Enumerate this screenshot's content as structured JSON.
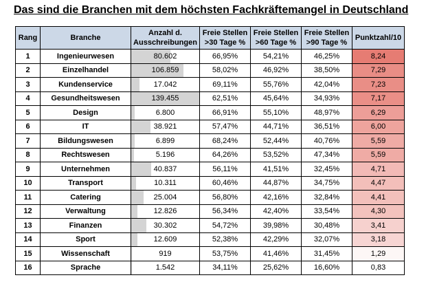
{
  "title": "Das sind die Branchen mit dem höchsten Fachkräftemangel in Deutschland",
  "headers": {
    "rank": "Rang",
    "branche": "Branche",
    "anzahl": "Anzahl d. Ausschreibungen",
    "f30": "Freie Stellen >30 Tage %",
    "f60": "Freie Stellen >60 Tage %",
    "f90": "Freie Stellen >90 Tage %",
    "score": "Punktzahl/10"
  },
  "colors": {
    "header_bg": "#ccd8e7",
    "anzahl_bar": "#d4d4d4",
    "score_high": "#e67c73",
    "score_low": "#ffffff"
  },
  "rows": [
    {
      "rank": "1",
      "branche": "Ingenieurwesen",
      "anzahl": "80.602",
      "f30": "66,95%",
      "f60": "54,21%",
      "f90": "46,25%",
      "score": "8,24"
    },
    {
      "rank": "2",
      "branche": "Einzelhandel",
      "anzahl": "106.859",
      "f30": "58,02%",
      "f60": "46,92%",
      "f90": "38,50%",
      "score": "7,29"
    },
    {
      "rank": "3",
      "branche": "Kundenservice",
      "anzahl": "17.042",
      "f30": "69,11%",
      "f60": "55,76%",
      "f90": "42,04%",
      "score": "7,23"
    },
    {
      "rank": "4",
      "branche": "Gesundheitswesen",
      "anzahl": "139.455",
      "f30": "62,51%",
      "f60": "45,64%",
      "f90": "34,93%",
      "score": "7,17"
    },
    {
      "rank": "5",
      "branche": "Design",
      "anzahl": "6.800",
      "f30": "66,91%",
      "f60": "55,10%",
      "f90": "48,97%",
      "score": "6,29"
    },
    {
      "rank": "6",
      "branche": "IT",
      "anzahl": "38.921",
      "f30": "57,47%",
      "f60": "44,71%",
      "f90": "36,51%",
      "score": "6,00"
    },
    {
      "rank": "7",
      "branche": "Bildungswesen",
      "anzahl": "6.899",
      "f30": "68,24%",
      "f60": "52,44%",
      "f90": "40,76%",
      "score": "5,59"
    },
    {
      "rank": "8",
      "branche": "Rechtswesen",
      "anzahl": "5.196",
      "f30": "64,26%",
      "f60": "53,52%",
      "f90": "47,34%",
      "score": "5,59"
    },
    {
      "rank": "9",
      "branche": "Unternehmen",
      "anzahl": "40.837",
      "f30": "56,11%",
      "f60": "41,51%",
      "f90": "32,45%",
      "score": "4,71"
    },
    {
      "rank": "10",
      "branche": "Transport",
      "anzahl": "10.311",
      "f30": "60,46%",
      "f60": "44,87%",
      "f90": "34,75%",
      "score": "4,47"
    },
    {
      "rank": "11",
      "branche": "Catering",
      "anzahl": "25.004",
      "f30": "56,80%",
      "f60": "42,16%",
      "f90": "32,84%",
      "score": "4,41"
    },
    {
      "rank": "12",
      "branche": "Verwaltung",
      "anzahl": "12.826",
      "f30": "56,34%",
      "f60": "42,40%",
      "f90": "33,54%",
      "score": "4,30"
    },
    {
      "rank": "13",
      "branche": "Finanzen",
      "anzahl": "30.302",
      "f30": "54,72%",
      "f60": "39,98%",
      "f90": "30,48%",
      "score": "3,41"
    },
    {
      "rank": "14",
      "branche": "Sport",
      "anzahl": "12.609",
      "f30": "52,38%",
      "f60": "42,29%",
      "f90": "32,07%",
      "score": "3,18"
    },
    {
      "rank": "15",
      "branche": "Wissenschaft",
      "anzahl": "919",
      "f30": "53,75%",
      "f60": "41,46%",
      "f90": "31,45%",
      "score": "1,29"
    },
    {
      "rank": "16",
      "branche": "Sprache",
      "anzahl": "1.542",
      "f30": "34,11%",
      "f60": "25,62%",
      "f90": "16,60%",
      "score": "0,83"
    }
  ]
}
